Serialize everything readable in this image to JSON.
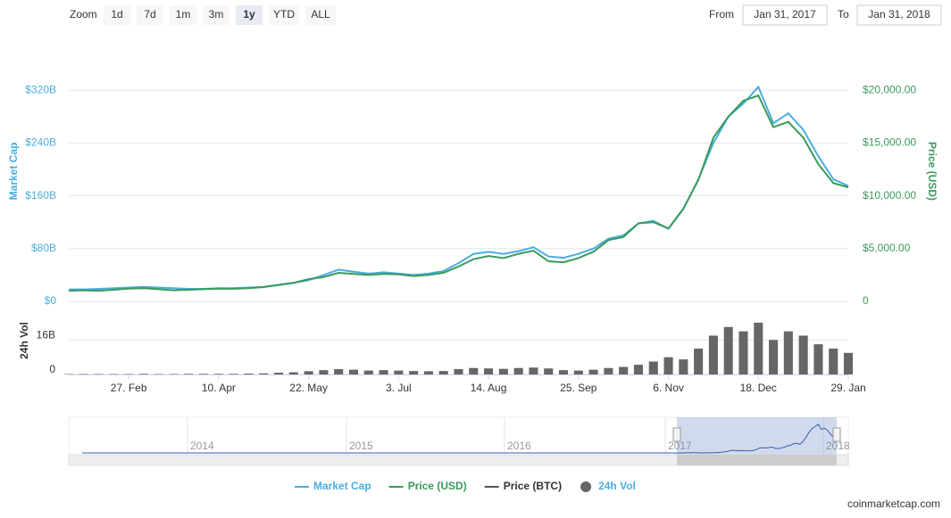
{
  "zoom": {
    "label": "Zoom",
    "buttons": [
      "1d",
      "7d",
      "1m",
      "3m",
      "1y",
      "YTD",
      "ALL"
    ],
    "active": 4
  },
  "range": {
    "from_label": "From",
    "from": "Jan 31, 2017",
    "to_label": "To",
    "to": "Jan 31, 2018"
  },
  "credit": "coinmarketcap.com",
  "navigator": {
    "years": [
      "2014",
      "2015",
      "2016",
      "2017",
      "2018"
    ]
  },
  "chart_data": {
    "type": "line",
    "categories": [
      null,
      null,
      null,
      null,
      "27. Feb",
      null,
      null,
      null,
      null,
      null,
      "10. Apr",
      null,
      null,
      null,
      null,
      null,
      "22. May",
      null,
      null,
      null,
      null,
      null,
      "3. Jul",
      null,
      null,
      null,
      null,
      null,
      "14. Aug",
      null,
      null,
      null,
      null,
      null,
      "25. Sep",
      null,
      null,
      null,
      null,
      null,
      "6. Nov",
      null,
      null,
      null,
      null,
      null,
      "18. Dec",
      null,
      null,
      null,
      null,
      null,
      "29. Jan"
    ],
    "ylabel": "Market Cap",
    "y2label": "Price (USD)",
    "vollabel": "24h Vol",
    "ylim": [
      0,
      400
    ],
    "yticks": [
      {
        "value": 0,
        "label": "$0"
      },
      {
        "value": 80,
        "label": "$80B"
      },
      {
        "value": 160,
        "label": "$160B"
      },
      {
        "value": 240,
        "label": "$240B"
      },
      {
        "value": 320,
        "label": "$320B"
      }
    ],
    "y2lim": [
      0,
      25000
    ],
    "y2ticks": [
      0,
      {
        "value": 5000,
        "label": "$5,000.00"
      },
      {
        "value": 10000,
        "label": "$10,000.00"
      },
      {
        "value": 15000,
        "label": "$15,000.00"
      },
      {
        "value": 20000,
        "label": "$20,000.00"
      }
    ],
    "vollim": [
      0,
      31
    ],
    "volticks": [
      0,
      {
        "value": 16,
        "label": "16B"
      }
    ],
    "grid": true,
    "series": [
      {
        "name": "Market Cap",
        "color": "#4aaee0",
        "values": [
          18,
          18,
          19,
          20,
          21,
          22,
          21,
          20,
          19,
          19,
          20,
          20,
          21,
          22,
          25,
          28,
          32,
          40,
          48,
          45,
          42,
          44,
          42,
          40,
          42,
          46,
          58,
          72,
          75,
          72,
          76,
          82,
          68,
          66,
          72,
          80,
          95,
          100,
          118,
          122,
          110,
          140,
          185,
          240,
          280,
          300,
          325,
          270,
          285,
          260,
          220,
          185,
          175
        ]
      },
      {
        "name": "Price (USD)",
        "color": "#3a9a5c",
        "axis": "y2",
        "values": [
          1000,
          1050,
          1000,
          1100,
          1200,
          1250,
          1150,
          1050,
          1100,
          1150,
          1200,
          1190,
          1250,
          1350,
          1550,
          1750,
          2100,
          2300,
          2700,
          2600,
          2500,
          2600,
          2550,
          2400,
          2500,
          2700,
          3300,
          4000,
          4300,
          4100,
          4500,
          4800,
          3800,
          3700,
          4100,
          4700,
          5800,
          6100,
          7400,
          7500,
          6900,
          8800,
          11500,
          15500,
          17500,
          19000,
          19500,
          16500,
          17000,
          15500,
          13000,
          11200,
          10800
        ]
      },
      {
        "name": "Price (BTC)",
        "color": "#555555",
        "visible": false
      },
      {
        "name": "24h Vol",
        "color": "#666666",
        "axis": "vol",
        "values": [
          0.2,
          0.2,
          0.2,
          0.2,
          0.2,
          0.3,
          0.2,
          0.2,
          0.3,
          0.3,
          0.3,
          0.3,
          0.4,
          0.5,
          0.8,
          1.0,
          1.5,
          2.0,
          2.5,
          2.2,
          1.8,
          2.0,
          1.8,
          1.6,
          1.5,
          1.6,
          2.5,
          3.0,
          2.8,
          2.6,
          3.0,
          3.2,
          2.8,
          2.0,
          1.8,
          2.2,
          3.0,
          3.5,
          4.5,
          6.0,
          8.0,
          7.0,
          12.0,
          18.0,
          22.0,
          20.0,
          24.0,
          16.0,
          20.0,
          18.0,
          14.0,
          12.0,
          10.0
        ]
      }
    ]
  }
}
